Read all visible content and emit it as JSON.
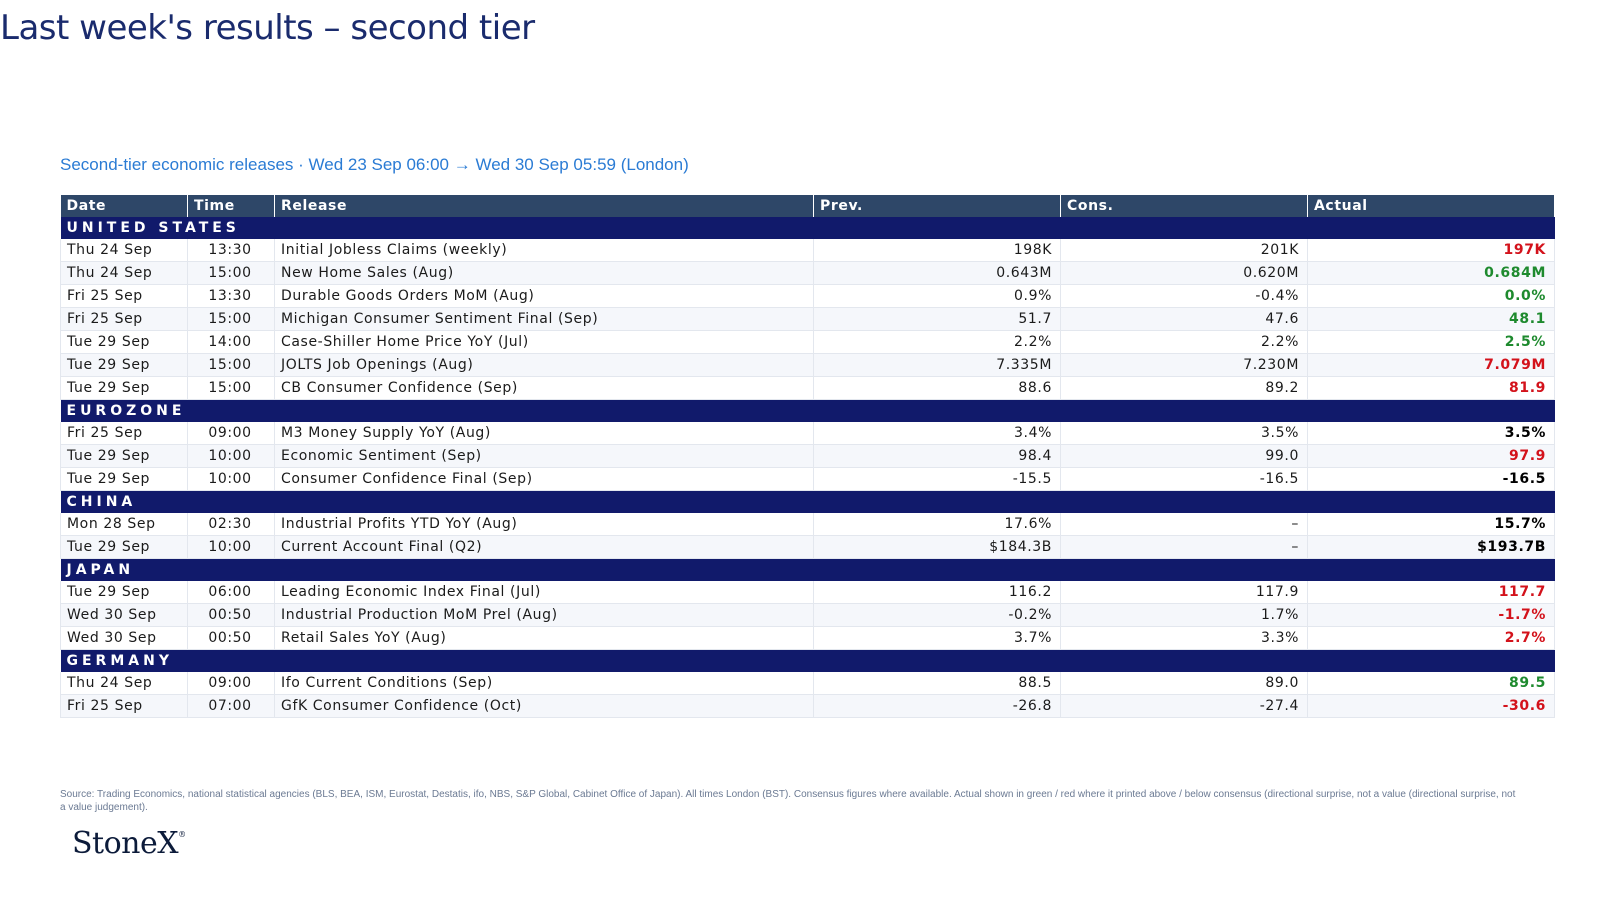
{
  "title": "Last week's results – second tier",
  "subtitle": "Second-tier economic releases · Wed 23 Sep 06:00 → Wed 30 Sep 05:59 (London)",
  "colors": {
    "up": "#1e8a2e",
    "down": "#d3121b",
    "neutral": "#000000",
    "header_bg": "#2e4768",
    "section_bg": "#111a6b",
    "title": "#1a2b6d",
    "subtitle": "#2a7bd4"
  },
  "table": {
    "columns": [
      "Date",
      "Time",
      "Release",
      "Prev.",
      "Cons.",
      "Actual"
    ],
    "sections": [
      {
        "name": "UNITED STATES",
        "rows": [
          {
            "date": "Thu 24 Sep",
            "time": "13:30",
            "release": "Initial Jobless Claims (weekly)",
            "prev": "198K",
            "cons": "201K",
            "actual": "197K",
            "surprise": "down"
          },
          {
            "date": "Thu 24 Sep",
            "time": "15:00",
            "release": "New Home Sales (Aug)",
            "prev": "0.643M",
            "cons": "0.620M",
            "actual": "0.684M",
            "surprise": "up"
          },
          {
            "date": "Fri 25 Sep",
            "time": "13:30",
            "release": "Durable Goods Orders MoM (Aug)",
            "prev": "0.9%",
            "cons": "-0.4%",
            "actual": "0.0%",
            "surprise": "up"
          },
          {
            "date": "Fri 25 Sep",
            "time": "15:00",
            "release": "Michigan Consumer Sentiment Final (Sep)",
            "prev": "51.7",
            "cons": "47.6",
            "actual": "48.1",
            "surprise": "up"
          },
          {
            "date": "Tue 29 Sep",
            "time": "14:00",
            "release": "Case-Shiller Home Price YoY (Jul)",
            "prev": "2.2%",
            "cons": "2.2%",
            "actual": "2.5%",
            "surprise": "up"
          },
          {
            "date": "Tue 29 Sep",
            "time": "15:00",
            "release": "JOLTS Job Openings (Aug)",
            "prev": "7.335M",
            "cons": "7.230M",
            "actual": "7.079M",
            "surprise": "down"
          },
          {
            "date": "Tue 29 Sep",
            "time": "15:00",
            "release": "CB Consumer Confidence (Sep)",
            "prev": "88.6",
            "cons": "89.2",
            "actual": "81.9",
            "surprise": "down"
          }
        ]
      },
      {
        "name": "EUROZONE",
        "rows": [
          {
            "date": "Fri 25 Sep",
            "time": "09:00",
            "release": "M3 Money Supply YoY (Aug)",
            "prev": "3.4%",
            "cons": "3.5%",
            "actual": "3.5%",
            "surprise": "neutral"
          },
          {
            "date": "Tue 29 Sep",
            "time": "10:00",
            "release": "Economic Sentiment (Sep)",
            "prev": "98.4",
            "cons": "99.0",
            "actual": "97.9",
            "surprise": "down"
          },
          {
            "date": "Tue 29 Sep",
            "time": "10:00",
            "release": "Consumer Confidence Final (Sep)",
            "prev": "-15.5",
            "cons": "-16.5",
            "actual": "-16.5",
            "surprise": "neutral"
          }
        ]
      },
      {
        "name": "CHINA",
        "rows": [
          {
            "date": "Mon 28 Sep",
            "time": "02:30",
            "release": "Industrial Profits YTD YoY (Aug)",
            "prev": "17.6%",
            "cons": "–",
            "actual": "15.7%",
            "surprise": "neutral"
          },
          {
            "date": "Tue 29 Sep",
            "time": "10:00",
            "release": "Current Account Final (Q2)",
            "prev": "$184.3B",
            "cons": "–",
            "actual": "$193.7B",
            "surprise": "neutral"
          }
        ]
      },
      {
        "name": "JAPAN",
        "rows": [
          {
            "date": "Tue 29 Sep",
            "time": "06:00",
            "release": "Leading Economic Index Final (Jul)",
            "prev": "116.2",
            "cons": "117.9",
            "actual": "117.7",
            "surprise": "down"
          },
          {
            "date": "Wed 30 Sep",
            "time": "00:50",
            "release": "Industrial Production MoM Prel (Aug)",
            "prev": "-0.2%",
            "cons": "1.7%",
            "actual": "-1.7%",
            "surprise": "down"
          },
          {
            "date": "Wed 30 Sep",
            "time": "00:50",
            "release": "Retail Sales YoY (Aug)",
            "prev": "3.7%",
            "cons": "3.3%",
            "actual": "2.7%",
            "surprise": "down"
          }
        ]
      },
      {
        "name": "GERMANY",
        "rows": [
          {
            "date": "Thu 24 Sep",
            "time": "09:00",
            "release": "Ifo Current Conditions (Sep)",
            "prev": "88.5",
            "cons": "89.0",
            "actual": "89.5",
            "surprise": "up"
          },
          {
            "date": "Fri 25 Sep",
            "time": "07:00",
            "release": "GfK Consumer Confidence (Oct)",
            "prev": "-26.8",
            "cons": "-27.4",
            "actual": "-30.6",
            "surprise": "down"
          }
        ]
      }
    ]
  },
  "footnote": "Source: Trading Economics, national statistical agencies (BLS, BEA, ISM, Eurostat, Destatis, ifo, NBS, S&P Global, Cabinet Office of Japan). All times London (BST). Consensus figures where available.  Actual shown in green / red where it printed above / below consensus (directional surprise, not a value (directional surprise, not a value judgement).",
  "logo": {
    "text": "StoneX",
    "mark": "®"
  }
}
